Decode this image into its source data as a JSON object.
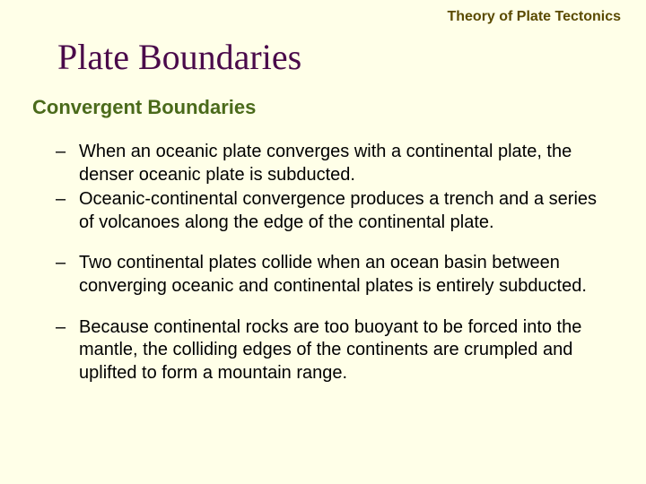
{
  "colors": {
    "background": "#ffffe8",
    "header_text": "#5a4a00",
    "title_text": "#4a0a4a",
    "section_text": "#4a6a1a",
    "body_text": "#000000"
  },
  "header": {
    "label": "Theory of Plate Tectonics"
  },
  "title": "Plate Boundaries",
  "section": "Convergent Boundaries",
  "bullets": {
    "group1": {
      "item0": "When an oceanic plate converges with a continental plate, the denser oceanic plate is subducted.",
      "item1": "Oceanic-continental convergence produces a trench and a series of volcanoes along the edge of the continental plate."
    },
    "group2": {
      "item0": "Two continental plates collide when an ocean basin between converging oceanic and continental plates is entirely subducted."
    },
    "group3": {
      "item0": "Because continental rocks are too buoyant to be forced into the mantle, the colliding edges of the continents are crumpled and uplifted to form a mountain range."
    }
  },
  "dash": "–"
}
